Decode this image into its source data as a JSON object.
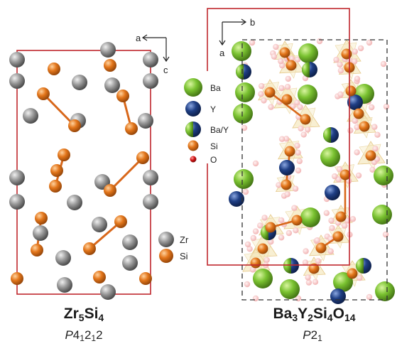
{
  "left_panel": {
    "compound": {
      "parts": [
        {
          "t": "Zr",
          "sub": false
        },
        {
          "t": "5",
          "sub": true
        },
        {
          "t": "Si",
          "sub": false
        },
        {
          "t": "4",
          "sub": true
        }
      ]
    },
    "space_group": {
      "parts": [
        {
          "t": "P",
          "kind": "i"
        },
        {
          "t": "4",
          "kind": "n"
        },
        {
          "t": "1",
          "kind": "sub"
        },
        {
          "t": "2",
          "kind": "n"
        },
        {
          "t": "1",
          "kind": "sub"
        },
        {
          "t": "2",
          "kind": "n"
        }
      ]
    },
    "axes": {
      "h": "a",
      "v": "c"
    },
    "legend": [
      {
        "label": "Zr",
        "color": "#8a8a8a"
      },
      {
        "label": "Si",
        "color": "#e3761b"
      }
    ]
  },
  "right_panel": {
    "compound": {
      "parts": [
        {
          "t": "Ba",
          "sub": false
        },
        {
          "t": "3",
          "sub": true
        },
        {
          "t": "Y",
          "sub": false
        },
        {
          "t": "2",
          "sub": true
        },
        {
          "t": "Si",
          "sub": false
        },
        {
          "t": "4",
          "sub": true
        },
        {
          "t": "O",
          "sub": false
        },
        {
          "t": "14",
          "sub": true
        }
      ]
    },
    "space_group": {
      "parts": [
        {
          "t": "P",
          "kind": "i"
        },
        {
          "t": "2",
          "kind": "n"
        },
        {
          "t": "1",
          "kind": "sub"
        }
      ]
    },
    "axes": {
      "h": "b",
      "v": "a"
    },
    "legend": [
      {
        "label": "Ba",
        "color": "#7ac231"
      },
      {
        "label": "Y",
        "color": "#1f3f85"
      },
      {
        "label": "Ba/Y",
        "color": "split"
      },
      {
        "label": "Si",
        "color": "#e3761b"
      },
      {
        "label": "O",
        "color": "#cf1212"
      }
    ]
  },
  "colors": {
    "zr": "#8a8a8a",
    "si": "#e3761b",
    "ba": "#7ac231",
    "y": "#1f3f85",
    "o": "#cf1212",
    "cell": "#c0272d",
    "tetra": "#f2dfa8"
  }
}
